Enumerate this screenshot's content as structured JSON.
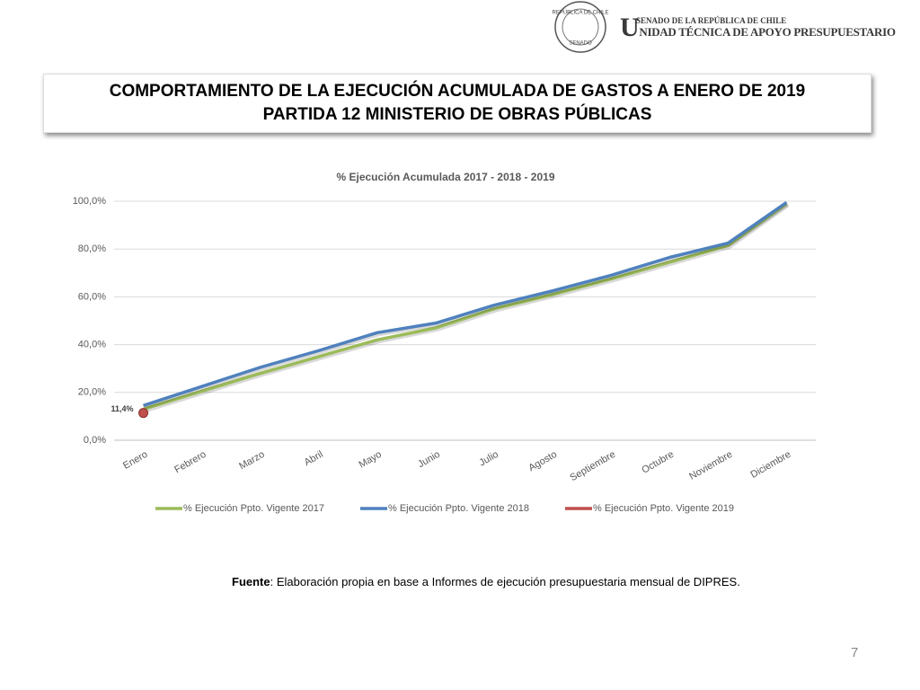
{
  "header": {
    "seal_top": "REPÚBLICA DE CHILE",
    "seal_bottom": "SENADO",
    "org_line1": "SENADO DE LA REPÚBLICA DE CHILE",
    "org_line2": "UNIDAD TÉCNICA DE APOYO PRESUPUESTARIO"
  },
  "slide_title": [
    "COMPORTAMIENTO DE LA EJECUCIÓN ACUMULADA DE GASTOS A ENERO DE 2019",
    "PARTIDA 12 MINISTERIO DE OBRAS PÚBLICAS"
  ],
  "chart_data": {
    "type": "line",
    "title": "% Ejecución Acumulada  2017 - 2018 - 2019",
    "categories": [
      "Enero",
      "Febrero",
      "Marzo",
      "Abril",
      "Mayo",
      "Junio",
      "Julio",
      "Agosto",
      "Septiembre",
      "Octubre",
      "Noviembre",
      "Diciembre"
    ],
    "series": [
      {
        "name": "% Ejecución Ppto. Vigente 2017",
        "color": "#9bbb59",
        "values": [
          13,
          20.5,
          28,
          35,
          42,
          47,
          55,
          61,
          67.5,
          74.5,
          81.5,
          99
        ]
      },
      {
        "name": "% Ejecución Ppto. Vigente 2018",
        "color": "#4f81bd",
        "values": [
          14.5,
          22.5,
          30.5,
          37.5,
          45,
          49,
          56.5,
          62.5,
          69,
          76.5,
          82.5,
          99.5
        ]
      },
      {
        "name": "% Ejecución Ppto. Vigente 2019",
        "color": "#c0504d",
        "values": [
          11.4,
          null,
          null,
          null,
          null,
          null,
          null,
          null,
          null,
          null,
          null,
          null
        ],
        "value_labels": [
          "11,4%",
          null,
          null,
          null,
          null,
          null,
          null,
          null,
          null,
          null,
          null,
          null
        ]
      }
    ],
    "ylim": [
      0,
      100
    ],
    "yticks": [
      {
        "value": 0,
        "label": "0,0%"
      },
      {
        "value": 20,
        "label": "20,0%"
      },
      {
        "value": 40,
        "label": "40,0%"
      },
      {
        "value": 60,
        "label": "60,0%"
      },
      {
        "value": 80,
        "label": "80,0%"
      },
      {
        "value": 100,
        "label": "100,0%"
      }
    ],
    "grid": true,
    "legend": "bottom"
  },
  "source": {
    "label": "Fuente",
    "text": ": Elaboración propia en base  a Informes de ejecución presupuestaria mensual de DIPRES."
  },
  "page_number": "7"
}
